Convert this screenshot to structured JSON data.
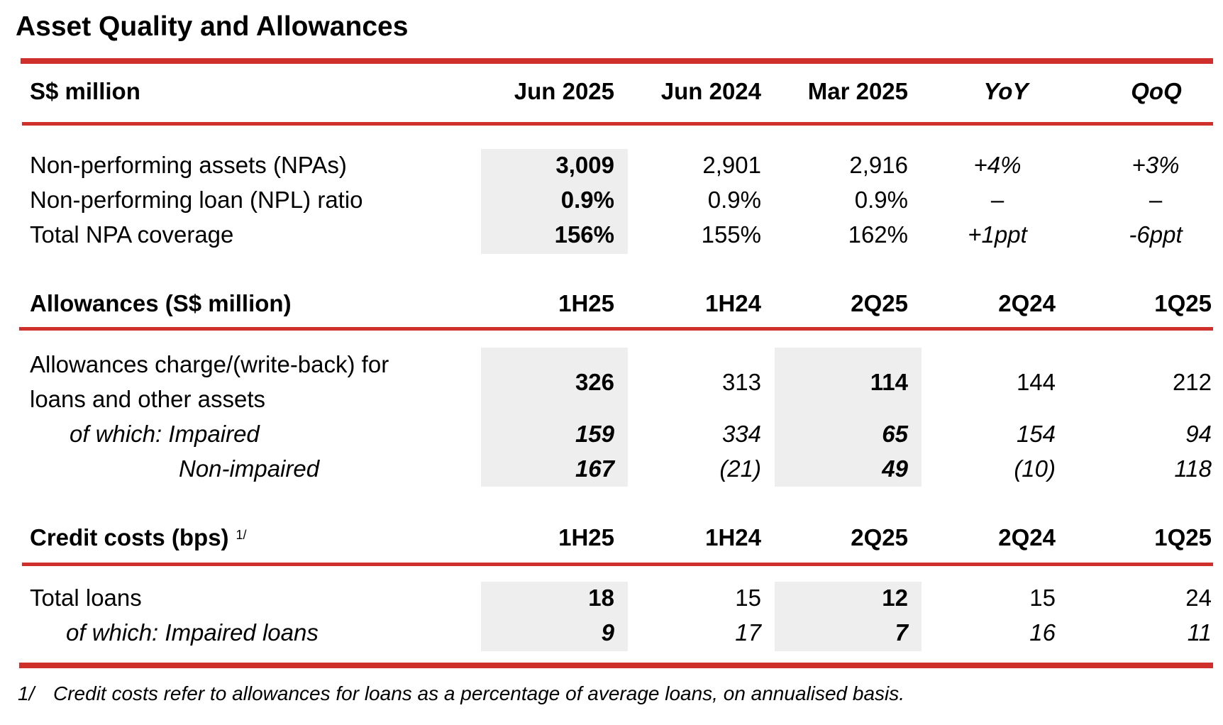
{
  "title": "Asset Quality and Allowances",
  "npa_section": {
    "header": {
      "label": "S$ million",
      "columns": [
        "Jun 2025",
        "Jun 2024",
        "Mar 2025",
        "YoY",
        "QoQ"
      ]
    },
    "rows": [
      {
        "label": "Non-performing assets (NPAs)",
        "values": [
          "3,009",
          "2,901",
          "2,916",
          "+4%",
          "+3%"
        ]
      },
      {
        "label": "Non-performing loan (NPL) ratio",
        "values": [
          "0.9%",
          "0.9%",
          "0.9%",
          "–",
          "–"
        ]
      },
      {
        "label": "Total NPA coverage",
        "values": [
          "156%",
          "155%",
          "162%",
          "+1ppt",
          "-6ppt"
        ]
      }
    ]
  },
  "allowances_section": {
    "header": {
      "label": "Allowances (S$ million)",
      "columns": [
        "1H25",
        "1H24",
        "2Q25",
        "2Q24",
        "1Q25"
      ]
    },
    "rows": [
      {
        "label_line1": "Allowances charge/(write-back) for",
        "label_line2": "loans and other assets",
        "values": [
          "326",
          "313",
          "114",
          "144",
          "212"
        ]
      },
      {
        "label": "of which: Impaired",
        "values": [
          "159",
          "334",
          "65",
          "154",
          "94"
        ]
      },
      {
        "label": "Non-impaired",
        "values": [
          "167",
          "(21)",
          "49",
          "(10)",
          "118"
        ]
      }
    ]
  },
  "credit_costs_section": {
    "header": {
      "label": "Credit costs (bps)",
      "footnote_ref": "1/",
      "columns": [
        "1H25",
        "1H24",
        "2Q25",
        "2Q24",
        "1Q25"
      ]
    },
    "rows": [
      {
        "label": "Total loans",
        "values": [
          "18",
          "15",
          "12",
          "15",
          "24"
        ]
      },
      {
        "label": "of which: Impaired loans",
        "values": [
          "9",
          "17",
          "7",
          "16",
          "11"
        ]
      }
    ]
  },
  "footnote": {
    "number": "1/",
    "text": "Credit costs refer to allowances for loans as a percentage of average loans, on annualised basis."
  },
  "colors": {
    "accent_rule": "#d0302c",
    "highlight_shade": "#eeeeee",
    "text": "#000000"
  }
}
